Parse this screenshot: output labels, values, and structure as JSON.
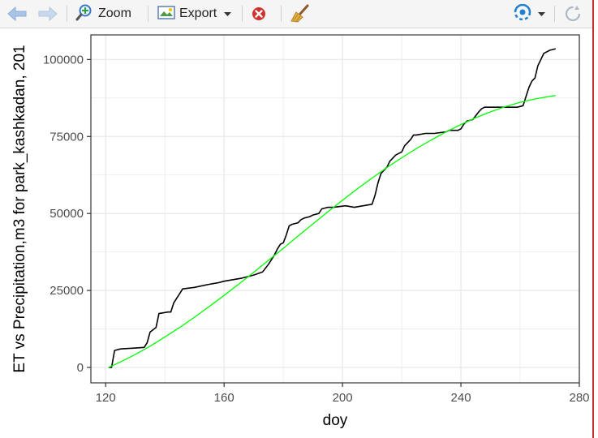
{
  "toolbar": {
    "back_icon": "back-arrow-icon",
    "forward_icon": "forward-arrow-icon",
    "zoom_label": "Zoom",
    "export_label": "Export",
    "remove_icon": "remove-plot-icon",
    "clear_icon": "broom-icon",
    "publish_icon": "publish-icon",
    "refresh_icon": "refresh-icon"
  },
  "colors": {
    "et_line": "#000000",
    "precip_line": "#00ff00",
    "grid": "#ebebeb",
    "panel_border": "#333333"
  },
  "chart_data": {
    "type": "line",
    "title": "",
    "xlabel": "doy",
    "ylabel": "ET vs Precipitation,m3 for park_kashkadan, 201",
    "xlim": [
      115,
      280
    ],
    "ylim": [
      -5000,
      108000
    ],
    "x_ticks": [
      120,
      160,
      200,
      240,
      280
    ],
    "x_tick_labels": [
      "120",
      "160",
      "200",
      "240",
      "280"
    ],
    "y_ticks": [
      0,
      25000,
      50000,
      75000,
      100000
    ],
    "y_tick_labels": [
      "0",
      "25000",
      "50000",
      "75000",
      "100000"
    ],
    "grid": true,
    "legend": "none",
    "series": [
      {
        "color": "#000000",
        "x": [
          121,
          122,
          123,
          125,
          130,
          133,
          134,
          135,
          137,
          138,
          141,
          142,
          143,
          145,
          146,
          150,
          155,
          158,
          160,
          163,
          166,
          170,
          173,
          175,
          176,
          177,
          178,
          179,
          180,
          181,
          182,
          183,
          185,
          186,
          187,
          189,
          190,
          192,
          193,
          195,
          197,
          201,
          204,
          210,
          211,
          212,
          213,
          215,
          216,
          218,
          220,
          221,
          223,
          224,
          225,
          228,
          231,
          235,
          236,
          239,
          240,
          241,
          242,
          244,
          246,
          247,
          248,
          250,
          255,
          259,
          261,
          262,
          263,
          264,
          265,
          266,
          267,
          268,
          270,
          272
        ],
        "y": [
          0,
          0,
          5500,
          6000,
          6300,
          6500,
          8000,
          11500,
          13000,
          17500,
          18000,
          18000,
          21000,
          24000,
          25500,
          26000,
          27000,
          27500,
          28000,
          28500,
          29000,
          30000,
          31000,
          33500,
          35000,
          36500,
          38500,
          40000,
          40500,
          43000,
          46000,
          46500,
          47000,
          48000,
          48500,
          49000,
          49500,
          50000,
          51500,
          52000,
          52000,
          52500,
          52000,
          53000,
          56000,
          60000,
          63000,
          65000,
          67000,
          69000,
          70000,
          72000,
          74000,
          75500,
          75500,
          76000,
          76000,
          76500,
          77000,
          77000,
          77500,
          79000,
          80000,
          80500,
          83000,
          84000,
          84500,
          84500,
          84500,
          84500,
          85000,
          88000,
          91000,
          93000,
          94000,
          98000,
          100000,
          102000,
          103000,
          103500
        ]
      },
      {
        "color": "#00ff00",
        "x": [
          121,
          125,
          130,
          135,
          140,
          145,
          150,
          155,
          160,
          165,
          170,
          175,
          180,
          185,
          190,
          195,
          200,
          205,
          210,
          215,
          220,
          225,
          230,
          235,
          240,
          245,
          250,
          255,
          260,
          265,
          270,
          272
        ],
        "y": [
          0,
          1800,
          4200,
          6900,
          9900,
          13000,
          16300,
          19800,
          23400,
          27100,
          30900,
          34800,
          38700,
          42700,
          46600,
          50500,
          54300,
          58000,
          61500,
          64900,
          68100,
          71100,
          73900,
          76500,
          78900,
          81100,
          83000,
          84700,
          86100,
          87200,
          88000,
          88300
        ]
      }
    ]
  }
}
